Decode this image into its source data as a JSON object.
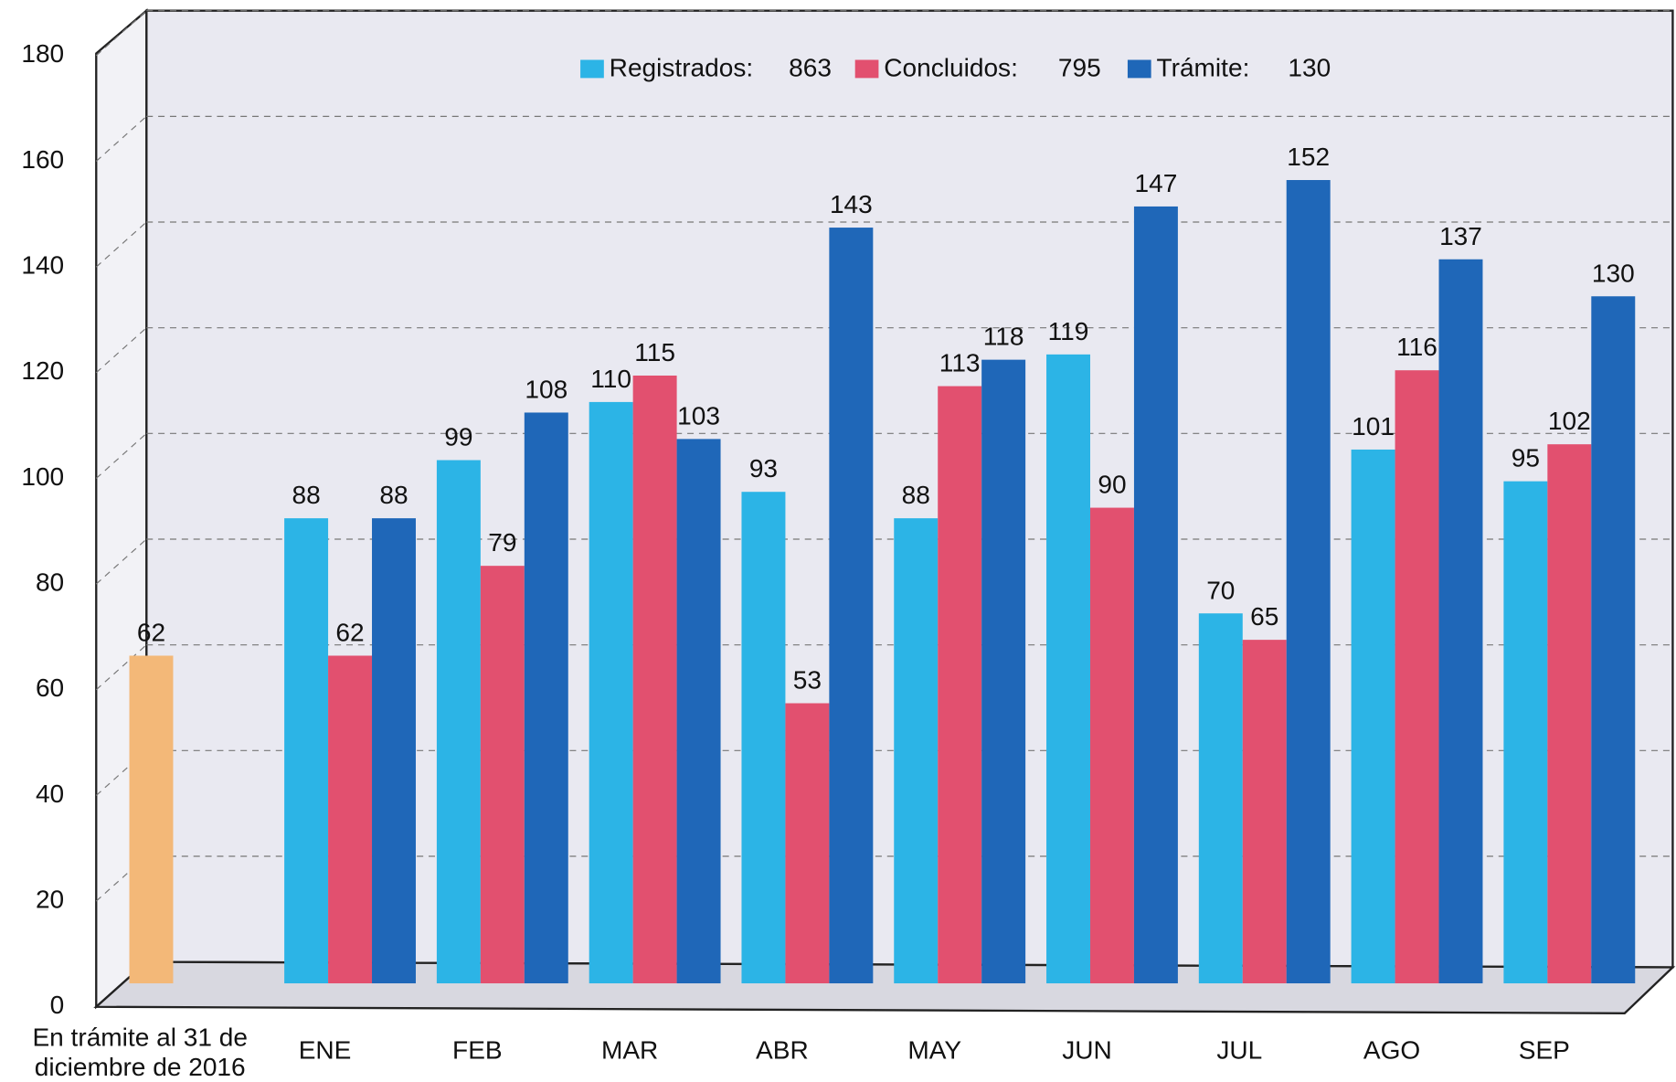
{
  "chart_data": {
    "type": "bar",
    "categories": [
      "ENE",
      "FEB",
      "MAR",
      "ABR",
      "MAY",
      "JUN",
      "JUL",
      "AGO",
      "SEP"
    ],
    "series": [
      {
        "name": "Registrados:",
        "total": 863,
        "color": "#2cb4e6",
        "values": [
          88,
          99,
          110,
          93,
          88,
          119,
          70,
          101,
          95
        ]
      },
      {
        "name": "Concluidos:",
        "total": 795,
        "color": "#e2506f",
        "values": [
          62,
          79,
          115,
          53,
          113,
          90,
          65,
          116,
          102
        ]
      },
      {
        "name": "Trámite:",
        "total": 130,
        "color": "#1f67b8",
        "values": [
          88,
          108,
          103,
          143,
          118,
          147,
          152,
          137,
          130
        ]
      }
    ],
    "initial": {
      "label_lines": [
        "En trámite al 31 de",
        "diciembre de 2016"
      ],
      "value": 62,
      "color": "#f3b878"
    },
    "ylim": [
      0,
      180
    ],
    "yticks": [
      0,
      20,
      40,
      60,
      80,
      100,
      120,
      140,
      160,
      180
    ],
    "grid": true
  }
}
